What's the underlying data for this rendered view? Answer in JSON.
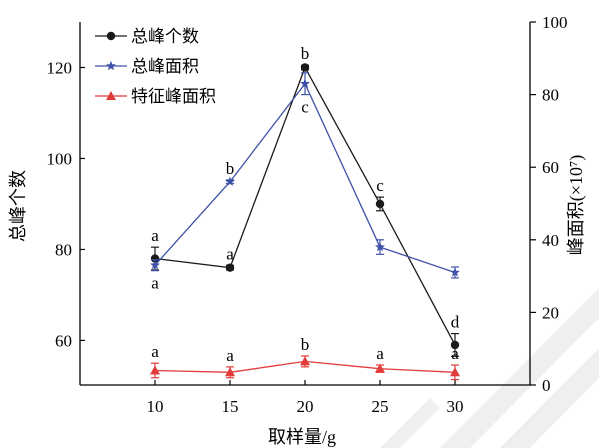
{
  "colors": {
    "total_peaks": "#1a1a1a",
    "total_area": "#3f51a8",
    "feature_area": "#e23b3b",
    "axis": "#000000"
  },
  "chart_data": {
    "type": "line",
    "x": [
      10,
      15,
      20,
      25,
      30
    ],
    "xlabel": "取样量/g",
    "ylabel_left": "总峰个数",
    "ylabel_right": "峰面积(×10⁷)",
    "xlim": [
      5,
      35
    ],
    "ylim_left": [
      50.2,
      130
    ],
    "ylim_right": [
      0,
      100
    ],
    "yticks_left": [
      60,
      80,
      100,
      120
    ],
    "yticks_right": [
      0,
      20,
      40,
      60,
      80,
      100
    ],
    "grid": false,
    "legend_position": "top-left",
    "series": [
      {
        "name": "总峰个数",
        "axis": "left",
        "marker": "circle",
        "values": [
          78,
          76,
          120,
          90,
          59
        ],
        "errors": [
          2.5,
          0.5,
          0.5,
          1.5,
          2.5
        ],
        "letters": [
          "a",
          "a",
          "b",
          "c",
          "d"
        ],
        "letter_side": [
          "above",
          "above",
          "above",
          "above",
          "above"
        ]
      },
      {
        "name": "总峰面积",
        "axis": "right",
        "marker": "star",
        "values": [
          33,
          56,
          83,
          38,
          31
        ],
        "errors": [
          1.5,
          0.5,
          3.0,
          2.0,
          1.5
        ],
        "letters": [
          "a",
          "b",
          "c",
          "",
          ""
        ],
        "letter_side": [
          "below",
          "above",
          "below",
          "above",
          "above"
        ]
      },
      {
        "name": "特征峰面积",
        "axis": "right",
        "marker": "triangle",
        "values": [
          4,
          3.5,
          6.5,
          4.5,
          3.5
        ],
        "errors": [
          2.0,
          1.5,
          1.5,
          1.0,
          2.0
        ],
        "letters": [
          "a",
          "a",
          "b",
          "a",
          "a"
        ],
        "letter_side": [
          "above",
          "above",
          "above",
          "above",
          "above"
        ]
      }
    ]
  }
}
